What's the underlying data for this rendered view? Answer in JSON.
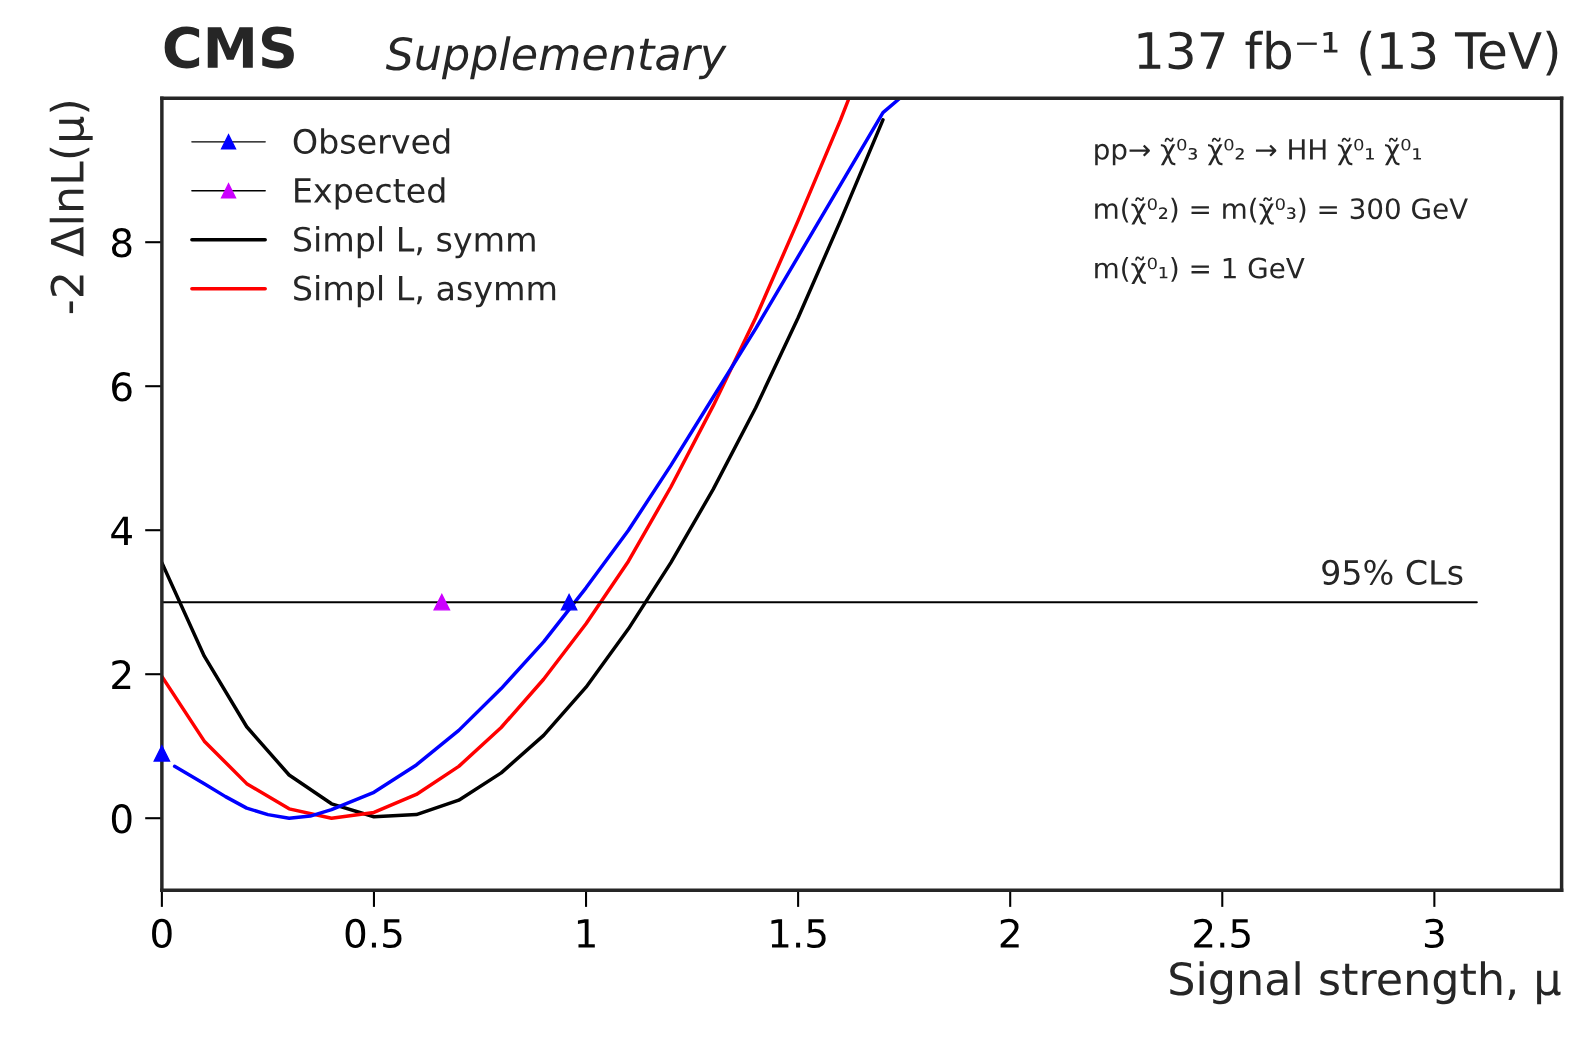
{
  "chart_data": {
    "type": "line",
    "title": "137 fb⁻¹ (13 TeV)",
    "subtitle": "Supplementary",
    "annotations": [
      "CMS",
      "pp→ χ̃⁰₃ χ̃⁰₂ → HH χ̃⁰₁ χ̃⁰₁",
      "m(χ̃⁰₂) = m(χ̃⁰₃) = 300 GeV",
      "m(χ̃⁰₁) = 1 GeV"
    ],
    "xlabel": "Signal strength, μ",
    "ylabel": "-2 ΔlnL(μ)",
    "xlim": [
      0,
      3.3
    ],
    "ylim": [
      -1,
      10
    ],
    "xticks": [
      0,
      0.5,
      1,
      1.5,
      2,
      2.5,
      3
    ],
    "yticks": [
      0,
      2,
      4,
      6,
      8
    ],
    "grid": false,
    "legend": "top left",
    "ref_lines": [
      {
        "axis": "y",
        "value": 3,
        "label": "95% CLs",
        "color": "#000000"
      }
    ],
    "series": [
      {
        "name": "Observed",
        "type": "scatter",
        "marker": "triangle",
        "color": "#0000ff",
        "x": [
          0,
          0.96
        ],
        "values": [
          0.9,
          3.0
        ]
      },
      {
        "name": "Expected",
        "type": "scatter",
        "marker": "triangle",
        "color": "#cc00ff",
        "x": [
          0.66
        ],
        "values": [
          3.0
        ]
      },
      {
        "name": "Simpl L, symm",
        "color": "#000000",
        "x": [
          0,
          0.1,
          0.2,
          0.3,
          0.4,
          0.5,
          0.6,
          0.7,
          0.8,
          0.9,
          1.0,
          1.1,
          1.2,
          1.3,
          1.4,
          1.5,
          1.6,
          1.7
        ],
        "values": [
          3.55,
          2.25,
          1.27,
          0.6,
          0.2,
          0.02,
          0.05,
          0.25,
          0.63,
          1.15,
          1.82,
          2.63,
          3.55,
          4.57,
          5.7,
          6.95,
          8.3,
          9.7
        ]
      },
      {
        "name": "Simpl L, asymm",
        "color": "#ff0000",
        "x": [
          0,
          0.1,
          0.2,
          0.3,
          0.4,
          0.5,
          0.6,
          0.7,
          0.8,
          0.9,
          1.0,
          1.1,
          1.2,
          1.3,
          1.4,
          1.5,
          1.6,
          1.62
        ],
        "values": [
          1.97,
          1.07,
          0.48,
          0.13,
          0.0,
          0.08,
          0.33,
          0.72,
          1.26,
          1.93,
          2.7,
          3.57,
          4.6,
          5.73,
          6.95,
          8.3,
          9.7,
          10.0
        ]
      },
      {
        "color": "#0000ff",
        "x": [
          0.03,
          0.1,
          0.15,
          0.2,
          0.25,
          0.3,
          0.35,
          0.4,
          0.5,
          0.6,
          0.7,
          0.8,
          0.9,
          1.0,
          1.1,
          1.2,
          1.3,
          1.4,
          1.5,
          1.6,
          1.7,
          1.74
        ],
        "values": [
          0.72,
          0.48,
          0.3,
          0.14,
          0.05,
          0.0,
          0.03,
          0.12,
          0.36,
          0.74,
          1.22,
          1.8,
          2.45,
          3.2,
          4.0,
          4.9,
          5.85,
          6.8,
          7.8,
          8.8,
          9.8,
          10.0
        ]
      }
    ]
  }
}
